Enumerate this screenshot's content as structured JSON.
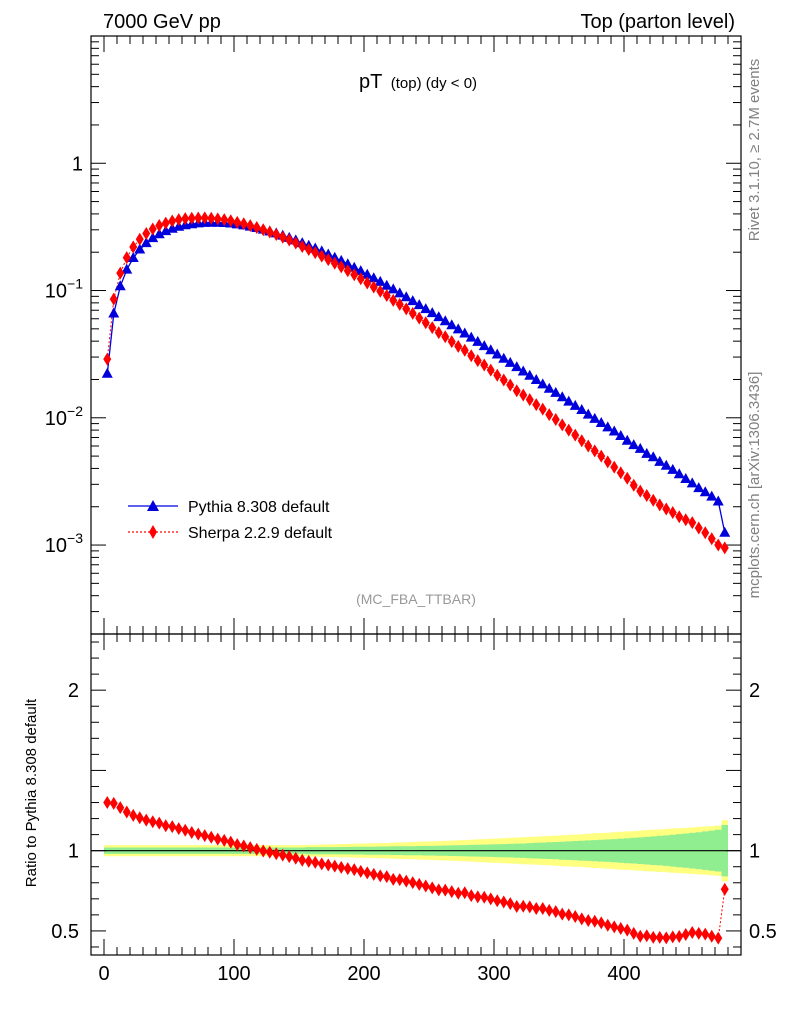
{
  "header": {
    "left": "7000 GeV pp",
    "right": "Top (parton level)"
  },
  "plot_title": {
    "main": "pT",
    "sub": "(top) (dy < 0)"
  },
  "side_labels": {
    "rivet": "Rivet 3.1.10, ≥ 2.7M events",
    "mcplots": "mcplots.cern.ch [arXiv:1306.3436]"
  },
  "analysis_tag": "(MC_FBA_TTBAR)",
  "legend": [
    {
      "label": "Pythia 8.308 default",
      "color": "#0000dd",
      "marker": "triangle",
      "line": "solid"
    },
    {
      "label": "Sherpa 2.2.9 default",
      "color": "#ff0000",
      "marker": "diamond",
      "line": "dotted"
    }
  ],
  "ratio_ylabel": "Ratio to Pythia 8.308 default",
  "colors": {
    "pythia": "#0000dd",
    "sherpa": "#ff0000",
    "band_inner": "#90ee90",
    "band_outer": "#ffff80"
  },
  "chart_data": [
    {
      "type": "scatter",
      "panel": "main",
      "log_y": true,
      "xlim": [
        -10,
        490
      ],
      "ylim": [
        0.0002,
        10
      ],
      "x_ticks": [
        0,
        100,
        200,
        300,
        400
      ],
      "y_tick_labels": [
        {
          "value": 1,
          "base": "1",
          "exp": ""
        },
        {
          "value": 0.1,
          "base": "10",
          "exp": "−1"
        },
        {
          "value": 0.01,
          "base": "10",
          "exp": "−2"
        },
        {
          "value": 0.001,
          "base": "10",
          "exp": "−3"
        }
      ],
      "x": [
        2.5,
        7.5,
        12.5,
        17.5,
        22.5,
        27.5,
        32.5,
        37.5,
        42.5,
        47.5,
        52.5,
        57.5,
        62.5,
        67.5,
        72.5,
        77.5,
        82.5,
        87.5,
        92.5,
        97.5,
        102.5,
        107.5,
        112.5,
        117.5,
        122.5,
        127.5,
        132.5,
        137.5,
        142.5,
        147.5,
        152.5,
        157.5,
        162.5,
        167.5,
        172.5,
        177.5,
        182.5,
        187.5,
        192.5,
        197.5,
        202.5,
        207.5,
        212.5,
        217.5,
        222.5,
        227.5,
        232.5,
        237.5,
        242.5,
        247.5,
        252.5,
        257.5,
        262.5,
        267.5,
        272.5,
        277.5,
        282.5,
        287.5,
        292.5,
        297.5,
        302.5,
        307.5,
        312.5,
        317.5,
        322.5,
        327.5,
        332.5,
        337.5,
        342.5,
        347.5,
        352.5,
        357.5,
        362.5,
        367.5,
        372.5,
        377.5,
        382.5,
        387.5,
        392.5,
        397.5,
        402.5,
        407.5,
        412.5,
        417.5,
        422.5,
        427.5,
        432.5,
        437.5,
        442.5,
        447.5,
        452.5,
        457.5,
        462.5,
        467.5,
        472.5,
        477.5
      ],
      "series": [
        {
          "name": "Pythia 8.308 default",
          "values": [
            0.0222,
            0.066,
            0.108,
            0.146,
            0.18,
            0.21,
            0.236,
            0.258,
            0.277,
            0.293,
            0.306,
            0.317,
            0.326,
            0.332,
            0.337,
            0.34,
            0.341,
            0.341,
            0.339,
            0.336,
            0.331,
            0.325,
            0.318,
            0.31,
            0.301,
            0.291,
            0.281,
            0.27,
            0.259,
            0.248,
            0.236,
            0.225,
            0.214,
            0.203,
            0.192,
            0.181,
            0.171,
            0.161,
            0.151,
            0.142,
            0.133,
            0.125,
            0.117,
            0.109,
            0.102,
            0.095,
            0.0885,
            0.0825,
            0.0768,
            0.0715,
            0.0665,
            0.0618,
            0.0574,
            0.0533,
            0.0495,
            0.0459,
            0.0426,
            0.0395,
            0.0366,
            0.0339,
            0.0314,
            0.0291,
            0.027,
            0.025,
            0.0231,
            0.0214,
            0.0198,
            0.0183,
            0.0169,
            0.0157,
            0.0145,
            0.0134,
            0.0124,
            0.0115,
            0.0106,
            0.0098,
            0.0091,
            0.0084,
            0.0078,
            0.0072,
            0.0066,
            0.0061,
            0.0057,
            0.0052,
            0.0049,
            0.0045,
            0.0042,
            0.0039,
            0.0036,
            0.0033,
            0.00305,
            0.0028,
            0.0026,
            0.0024,
            0.0022,
            0.00125
          ]
        },
        {
          "name": "Sherpa 2.2.9 default",
          "values": [
            0.0289,
            0.0855,
            0.1369,
            0.1812,
            0.2196,
            0.2531,
            0.2809,
            0.3044,
            0.3246,
            0.3384,
            0.3519,
            0.3604,
            0.3675,
            0.3695,
            0.3717,
            0.3719,
            0.3696,
            0.3656,
            0.3607,
            0.3537,
            0.3435,
            0.3344,
            0.3239,
            0.3125,
            0.3005,
            0.288,
            0.2758,
            0.2624,
            0.2495,
            0.2363,
            0.2219,
            0.2099,
            0.1983,
            0.1864,
            0.1749,
            0.1637,
            0.1533,
            0.1429,
            0.1331,
            0.1237,
            0.1147,
            0.1065,
            0.0986,
            0.0913,
            0.0837,
            0.0779,
            0.0717,
            0.0661,
            0.0607,
            0.0558,
            0.0511,
            0.0467,
            0.0433,
            0.0397,
            0.0364,
            0.0339,
            0.0307,
            0.0281,
            0.026,
            0.0237,
            0.0216,
            0.0198,
            0.0181,
            0.0163,
            0.0151,
            0.0139,
            0.0127,
            0.0117,
            0.0106,
            0.0097,
            0.0088,
            0.008,
            0.0073,
            0.0066,
            0.006,
            0.0055,
            0.005,
            0.0045,
            0.0041,
            0.0037,
            0.00335,
            0.00295,
            0.00265,
            0.00245,
            0.00225,
            0.00207,
            0.00192,
            0.0018,
            0.00167,
            0.00158,
            0.0015,
            0.00136,
            0.00125,
            0.00112,
            0.001,
            0.00095
          ]
        }
      ]
    },
    {
      "type": "scatter",
      "panel": "ratio",
      "ylabel": "Ratio to Pythia 8.308 default",
      "xlim": [
        -10,
        490
      ],
      "ylim": [
        0.35,
        2.35
      ],
      "x_ticks": [
        0,
        100,
        200,
        300,
        400
      ],
      "y_ticks": [
        0.5,
        1,
        2
      ],
      "x": [
        2.5,
        7.5,
        12.5,
        17.5,
        22.5,
        27.5,
        32.5,
        37.5,
        42.5,
        47.5,
        52.5,
        57.5,
        62.5,
        67.5,
        72.5,
        77.5,
        82.5,
        87.5,
        92.5,
        97.5,
        102.5,
        107.5,
        112.5,
        117.5,
        122.5,
        127.5,
        132.5,
        137.5,
        142.5,
        147.5,
        152.5,
        157.5,
        162.5,
        167.5,
        172.5,
        177.5,
        182.5,
        187.5,
        192.5,
        197.5,
        202.5,
        207.5,
        212.5,
        217.5,
        222.5,
        227.5,
        232.5,
        237.5,
        242.5,
        247.5,
        252.5,
        257.5,
        262.5,
        267.5,
        272.5,
        277.5,
        282.5,
        287.5,
        292.5,
        297.5,
        302.5,
        307.5,
        312.5,
        317.5,
        322.5,
        327.5,
        332.5,
        337.5,
        342.5,
        347.5,
        352.5,
        357.5,
        362.5,
        367.5,
        372.5,
        377.5,
        382.5,
        387.5,
        392.5,
        397.5,
        402.5,
        407.5,
        412.5,
        417.5,
        422.5,
        427.5,
        432.5,
        437.5,
        442.5,
        447.5,
        452.5,
        457.5,
        462.5,
        467.5,
        472.5,
        477.5
      ],
      "series": [
        {
          "name": "Sherpa 2.2.9 default",
          "values": [
            1.3,
            1.295,
            1.268,
            1.241,
            1.22,
            1.205,
            1.19,
            1.18,
            1.172,
            1.155,
            1.15,
            1.137,
            1.127,
            1.113,
            1.103,
            1.094,
            1.084,
            1.072,
            1.064,
            1.053,
            1.038,
            1.029,
            1.019,
            1.008,
            0.998,
            0.99,
            0.981,
            0.972,
            0.963,
            0.953,
            0.94,
            0.933,
            0.927,
            0.918,
            0.911,
            0.904,
            0.896,
            0.888,
            0.882,
            0.871,
            0.862,
            0.852,
            0.843,
            0.838,
            0.821,
            0.82,
            0.81,
            0.801,
            0.79,
            0.78,
            0.768,
            0.756,
            0.754,
            0.745,
            0.735,
            0.738,
            0.72,
            0.712,
            0.71,
            0.7,
            0.688,
            0.68,
            0.67,
            0.652,
            0.654,
            0.65,
            0.64,
            0.64,
            0.628,
            0.62,
            0.605,
            0.6,
            0.59,
            0.575,
            0.565,
            0.56,
            0.55,
            0.535,
            0.525,
            0.515,
            0.505,
            0.485,
            0.467,
            0.47,
            0.46,
            0.46,
            0.457,
            0.463,
            0.465,
            0.478,
            0.49,
            0.485,
            0.48,
            0.467,
            0.455,
            0.76
          ]
        }
      ],
      "band_inner_halfwidth": [
        0.02,
        0.02,
        0.02,
        0.02,
        0.02,
        0.02,
        0.02,
        0.02,
        0.02,
        0.02,
        0.02,
        0.02,
        0.02,
        0.02,
        0.02,
        0.02,
        0.02,
        0.02,
        0.02,
        0.02,
        0.02,
        0.02,
        0.02,
        0.02,
        0.02,
        0.02,
        0.02,
        0.02,
        0.02,
        0.02,
        0.02,
        0.022,
        0.022,
        0.022,
        0.022,
        0.022,
        0.023,
        0.023,
        0.024,
        0.024,
        0.025,
        0.025,
        0.026,
        0.026,
        0.027,
        0.027,
        0.028,
        0.028,
        0.029,
        0.03,
        0.03,
        0.031,
        0.032,
        0.033,
        0.034,
        0.035,
        0.036,
        0.037,
        0.038,
        0.039,
        0.04,
        0.041,
        0.042,
        0.044,
        0.045,
        0.047,
        0.049,
        0.05,
        0.052,
        0.054,
        0.056,
        0.058,
        0.06,
        0.062,
        0.064,
        0.066,
        0.068,
        0.07,
        0.072,
        0.075,
        0.078,
        0.08,
        0.083,
        0.086,
        0.089,
        0.092,
        0.095,
        0.099,
        0.103,
        0.107,
        0.111,
        0.115,
        0.12,
        0.125,
        0.13,
        0.16
      ],
      "band_outer_halfwidth": [
        0.035,
        0.035,
        0.035,
        0.035,
        0.035,
        0.035,
        0.035,
        0.035,
        0.035,
        0.035,
        0.035,
        0.035,
        0.035,
        0.035,
        0.035,
        0.035,
        0.035,
        0.035,
        0.035,
        0.035,
        0.035,
        0.035,
        0.035,
        0.035,
        0.035,
        0.035,
        0.035,
        0.035,
        0.035,
        0.035,
        0.035,
        0.036,
        0.037,
        0.038,
        0.039,
        0.04,
        0.041,
        0.042,
        0.043,
        0.044,
        0.045,
        0.046,
        0.047,
        0.048,
        0.05,
        0.051,
        0.052,
        0.054,
        0.055,
        0.057,
        0.058,
        0.06,
        0.061,
        0.063,
        0.065,
        0.066,
        0.068,
        0.07,
        0.072,
        0.074,
        0.076,
        0.078,
        0.08,
        0.082,
        0.084,
        0.086,
        0.088,
        0.09,
        0.092,
        0.094,
        0.096,
        0.098,
        0.1,
        0.102,
        0.105,
        0.108,
        0.11,
        0.112,
        0.115,
        0.118,
        0.12,
        0.122,
        0.125,
        0.128,
        0.13,
        0.132,
        0.135,
        0.138,
        0.14,
        0.142,
        0.145,
        0.148,
        0.15,
        0.153,
        0.156,
        0.19
      ]
    }
  ]
}
